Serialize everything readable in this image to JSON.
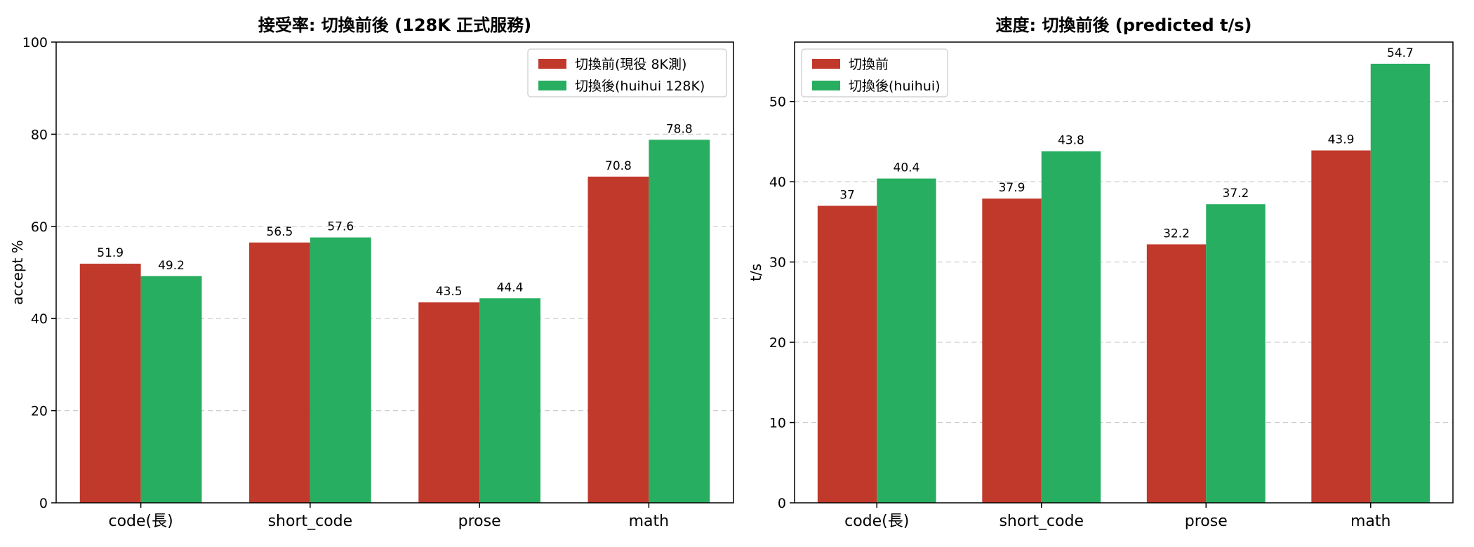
{
  "chart_data": [
    {
      "type": "bar",
      "title": "接受率: 切換前後 (128K 正式服務)",
      "xlabel": "",
      "ylabel": "accept %",
      "categories": [
        "code(長)",
        "short_code",
        "prose",
        "math"
      ],
      "series": [
        {
          "name": "切換前(現役 8K測)",
          "color": "#c0392b",
          "values": [
            51.9,
            56.5,
            43.5,
            70.8
          ]
        },
        {
          "name": "切換後(huihui 128K)",
          "color": "#27ae60",
          "values": [
            49.2,
            57.6,
            44.4,
            78.8
          ]
        }
      ],
      "ylim": [
        0,
        100
      ],
      "yticks": [
        0,
        20,
        40,
        60,
        80,
        100
      ],
      "grid": "horizontal dashed",
      "legend": "top-right"
    },
    {
      "type": "bar",
      "title": "速度: 切換前後 (predicted t/s)",
      "xlabel": "",
      "ylabel": "t/s",
      "categories": [
        "code(長)",
        "short_code",
        "prose",
        "math"
      ],
      "series": [
        {
          "name": "切換前",
          "color": "#c0392b",
          "values": [
            37.0,
            37.9,
            32.2,
            43.9
          ]
        },
        {
          "name": "切換後(huihui)",
          "color": "#27ae60",
          "values": [
            40.4,
            43.8,
            37.2,
            54.7
          ]
        }
      ],
      "ylim": [
        0,
        57.4
      ],
      "yticks": [
        0,
        10,
        20,
        30,
        40,
        50
      ],
      "grid": "horizontal dashed",
      "legend": "top-left"
    }
  ]
}
